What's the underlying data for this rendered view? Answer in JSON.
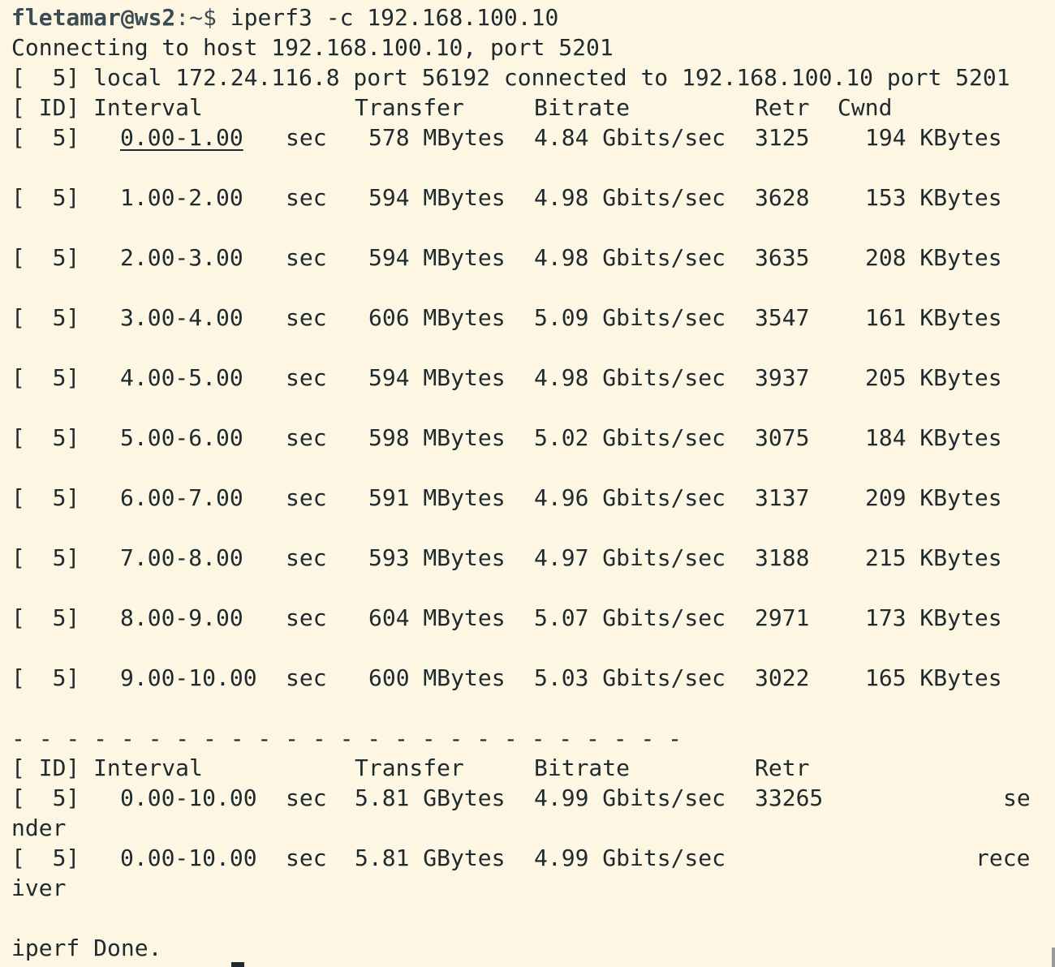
{
  "prompt": {
    "user_host": "fletamar@ws2",
    "path": ":~$ ",
    "command": "iperf3 -c 192.168.100.10"
  },
  "connecting_line": "Connecting to host 192.168.100.10, port 5201",
  "local_line": "[  5] local 172.24.116.8 port 56192 connected to 192.168.100.10 port 5201",
  "header": {
    "id": "[ ID]",
    "interval": "Interval",
    "transfer": "Transfer",
    "bitrate": "Bitrate",
    "retr": "Retr",
    "cwnd": "Cwnd"
  },
  "rows": [
    {
      "id": "[  5]",
      "interval": "0.00-1.00",
      "unit": "sec",
      "transfer": "578 MBytes",
      "bitrate": "4.84 Gbits/sec",
      "retr": "3125",
      "cwnd": "194 KBytes"
    },
    {
      "id": "[  5]",
      "interval": "1.00-2.00",
      "unit": "sec",
      "transfer": "594 MBytes",
      "bitrate": "4.98 Gbits/sec",
      "retr": "3628",
      "cwnd": "153 KBytes"
    },
    {
      "id": "[  5]",
      "interval": "2.00-3.00",
      "unit": "sec",
      "transfer": "594 MBytes",
      "bitrate": "4.98 Gbits/sec",
      "retr": "3635",
      "cwnd": "208 KBytes"
    },
    {
      "id": "[  5]",
      "interval": "3.00-4.00",
      "unit": "sec",
      "transfer": "606 MBytes",
      "bitrate": "5.09 Gbits/sec",
      "retr": "3547",
      "cwnd": "161 KBytes"
    },
    {
      "id": "[  5]",
      "interval": "4.00-5.00",
      "unit": "sec",
      "transfer": "594 MBytes",
      "bitrate": "4.98 Gbits/sec",
      "retr": "3937",
      "cwnd": "205 KBytes"
    },
    {
      "id": "[  5]",
      "interval": "5.00-6.00",
      "unit": "sec",
      "transfer": "598 MBytes",
      "bitrate": "5.02 Gbits/sec",
      "retr": "3075",
      "cwnd": "184 KBytes"
    },
    {
      "id": "[  5]",
      "interval": "6.00-7.00",
      "unit": "sec",
      "transfer": "591 MBytes",
      "bitrate": "4.96 Gbits/sec",
      "retr": "3137",
      "cwnd": "209 KBytes"
    },
    {
      "id": "[  5]",
      "interval": "7.00-8.00",
      "unit": "sec",
      "transfer": "593 MBytes",
      "bitrate": "4.97 Gbits/sec",
      "retr": "3188",
      "cwnd": "215 KBytes"
    },
    {
      "id": "[  5]",
      "interval": "8.00-9.00",
      "unit": "sec",
      "transfer": "604 MBytes",
      "bitrate": "5.07 Gbits/sec",
      "retr": "2971",
      "cwnd": "173 KBytes"
    },
    {
      "id": "[  5]",
      "interval": "9.00-10.00",
      "unit": "sec",
      "transfer": "600 MBytes",
      "bitrate": "5.03 Gbits/sec",
      "retr": "3022",
      "cwnd": "165 KBytes"
    }
  ],
  "separator": "- - - - - - - - - - - - - - - - - - - - - - - - -",
  "summary_header": {
    "id": "[ ID]",
    "interval": "Interval",
    "transfer": "Transfer",
    "bitrate": "Bitrate",
    "retr": "Retr"
  },
  "summary": [
    {
      "id": "[  5]",
      "interval": "0.00-10.00",
      "unit": "sec",
      "transfer": "5.81 GBytes",
      "bitrate": "4.99 Gbits/sec",
      "retr": "33265",
      "role_a": "se",
      "role_b": "nder"
    },
    {
      "id": "[  5]",
      "interval": "0.00-10.00",
      "unit": "sec",
      "transfer": "5.81 GBytes",
      "bitrate": "4.99 Gbits/sec",
      "retr": "",
      "role_a": "rece",
      "role_b": "iver"
    }
  ],
  "done_line": "iperf Done."
}
